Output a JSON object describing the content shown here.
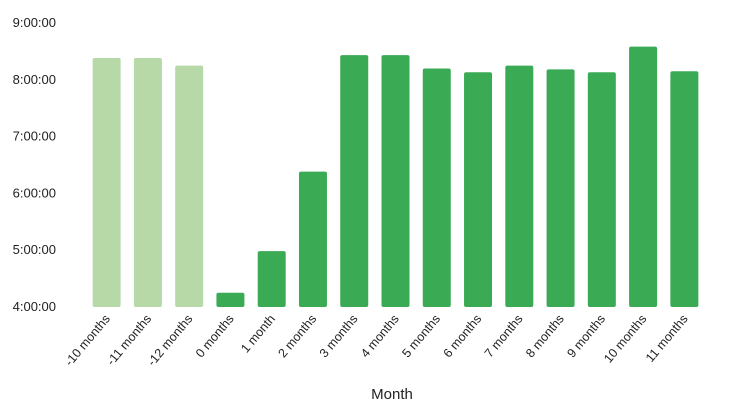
{
  "chart_data": {
    "type": "bar",
    "title": "",
    "xlabel": "Month",
    "ylabel": "",
    "categories": [
      "-10 months",
      "-11 months",
      "-12 months",
      "0 months",
      "1 month",
      "2 months",
      "3 months",
      "4 months",
      "5 months",
      "6 months",
      "7 months",
      "8 months",
      "9 months",
      "10 months",
      "11 months"
    ],
    "values": [
      "8:23:00",
      "8:23:00",
      "8:15:00",
      "4:15:00",
      "4:59:00",
      "6:23:00",
      "8:26:00",
      "8:26:00",
      "8:12:00",
      "8:08:00",
      "8:15:00",
      "8:11:00",
      "8:08:00",
      "8:35:00",
      "8:09:00"
    ],
    "value_unit": "h:mm:ss",
    "ylim": [
      "4:00:00",
      "9:00:00"
    ],
    "yticks": [
      "4:00:00",
      "5:00:00",
      "6:00:00",
      "7:00:00",
      "8:00:00",
      "9:00:00"
    ],
    "grid": false,
    "colors": {
      "baseline_bars": "#b7d9a8",
      "main_bars": "#3aaa55"
    },
    "baseline_categories": [
      "-10 months",
      "-11 months",
      "-12 months"
    ]
  }
}
